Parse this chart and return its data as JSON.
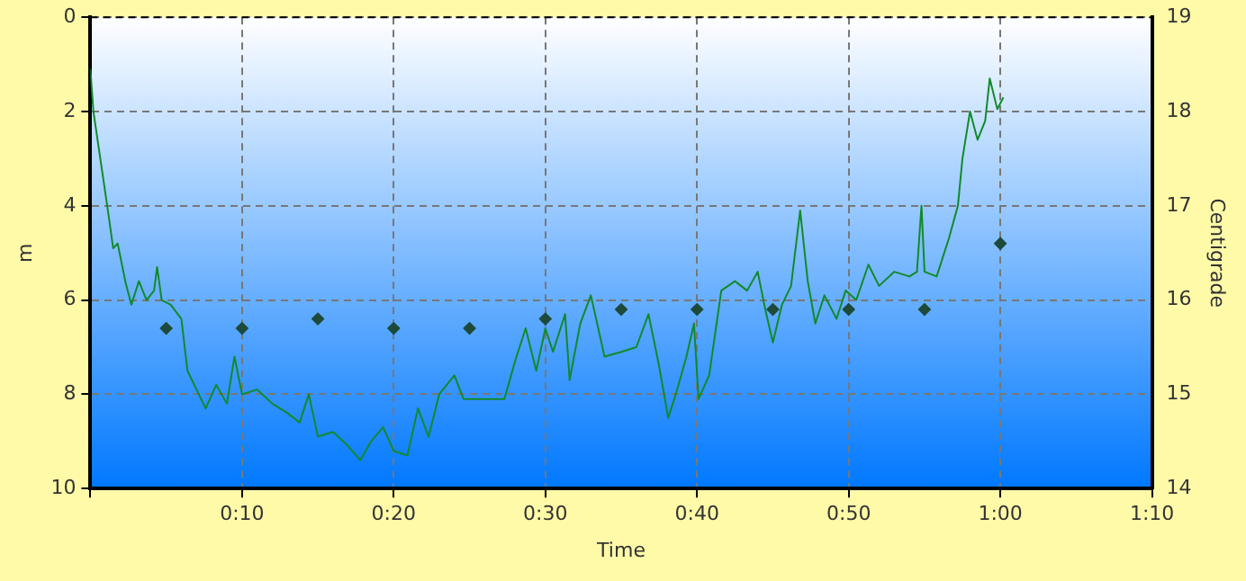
{
  "chart_data": {
    "type": "line",
    "xlabel": "Time",
    "ylabel": "m",
    "y2label": "Centigrade",
    "xlim": [
      0,
      70
    ],
    "xticks": [
      {
        "value": 0,
        "label": null
      },
      {
        "value": 10,
        "label": "0:10"
      },
      {
        "value": 20,
        "label": "0:20"
      },
      {
        "value": 30,
        "label": "0:30"
      },
      {
        "value": 40,
        "label": "0:40"
      },
      {
        "value": 50,
        "label": "0:50"
      },
      {
        "value": 60,
        "label": "1:00"
      },
      {
        "value": 70,
        "label": "1:10"
      }
    ],
    "ylim": [
      10,
      0
    ],
    "yticks": [
      0,
      2,
      4,
      6,
      8,
      10
    ],
    "y2lim": [
      14,
      19
    ],
    "y2ticks": [
      14,
      15,
      16,
      17,
      18,
      19
    ],
    "grid": true,
    "legend": false,
    "series": [
      {
        "color": "#118a2a",
        "marker": "none",
        "x": [
          0,
          0.2,
          0.7,
          1.2,
          1.5,
          1.8,
          2.3,
          2.7,
          3.2,
          3.7,
          4.2,
          4.4,
          4.7,
          5.3,
          6.0,
          6.4,
          7.0,
          7.6,
          8.3,
          9.0,
          9.5,
          10.0,
          11.0,
          12.0,
          13.0,
          13.8,
          14.4,
          15.0,
          16.0,
          17.0,
          17.8,
          18.5,
          19.3,
          20.0,
          20.9,
          21.6,
          22.3,
          23.0,
          24.0,
          24.6,
          26.0,
          27.3,
          28.0,
          28.7,
          29.4,
          30.0,
          30.5,
          31.3,
          31.6,
          32.3,
          33.0,
          33.9,
          35.0,
          36.0,
          36.8,
          37.5,
          38.1,
          38.6,
          39.3,
          39.8,
          40.1,
          40.8,
          41.6,
          42.5,
          43.3,
          44.0,
          44.5,
          45.0,
          45.6,
          46.2,
          46.8,
          47.3,
          47.8,
          48.4,
          49.2,
          49.8,
          50.5,
          51.3,
          52.0,
          53.0,
          54.0,
          54.5,
          54.8,
          55.0,
          55.8,
          56.6,
          57.2,
          57.5,
          58.0,
          58.5,
          59.0,
          59.3,
          59.8,
          60.2
        ],
        "values": [
          1.1,
          2.0,
          3.1,
          4.2,
          4.9,
          4.8,
          5.6,
          6.1,
          5.6,
          6.0,
          5.8,
          5.3,
          6.0,
          6.1,
          6.4,
          7.5,
          7.9,
          8.3,
          7.8,
          8.2,
          7.2,
          8.0,
          7.9,
          8.2,
          8.4,
          8.6,
          8.0,
          8.9,
          8.8,
          9.1,
          9.4,
          9.0,
          8.7,
          9.2,
          9.3,
          8.3,
          8.9,
          8.0,
          7.6,
          8.1,
          8.1,
          8.1,
          7.3,
          6.6,
          7.5,
          6.6,
          7.1,
          6.3,
          7.7,
          6.5,
          5.9,
          7.2,
          7.1,
          7.0,
          6.3,
          7.4,
          8.5,
          8.0,
          7.2,
          6.5,
          8.1,
          7.6,
          5.8,
          5.6,
          5.8,
          5.4,
          6.2,
          6.9,
          6.1,
          5.7,
          4.1,
          5.6,
          6.5,
          5.9,
          6.4,
          5.8,
          6.0,
          5.25,
          5.7,
          5.4,
          5.5,
          5.4,
          4.0,
          5.4,
          5.5,
          4.7,
          4.0,
          3.0,
          2.0,
          2.6,
          2.2,
          1.3,
          1.95,
          1.7
        ]
      },
      {
        "type": "scatter",
        "axis": "y2",
        "color": "#1e4a3a",
        "marker": "diamond",
        "x": [
          5,
          10,
          15,
          20,
          25,
          30,
          35,
          40,
          45,
          50,
          55,
          60
        ],
        "values": [
          15.7,
          15.7,
          15.8,
          15.7,
          15.7,
          15.8,
          15.9,
          15.9,
          15.9,
          15.9,
          15.9,
          16.6
        ]
      }
    ]
  }
}
